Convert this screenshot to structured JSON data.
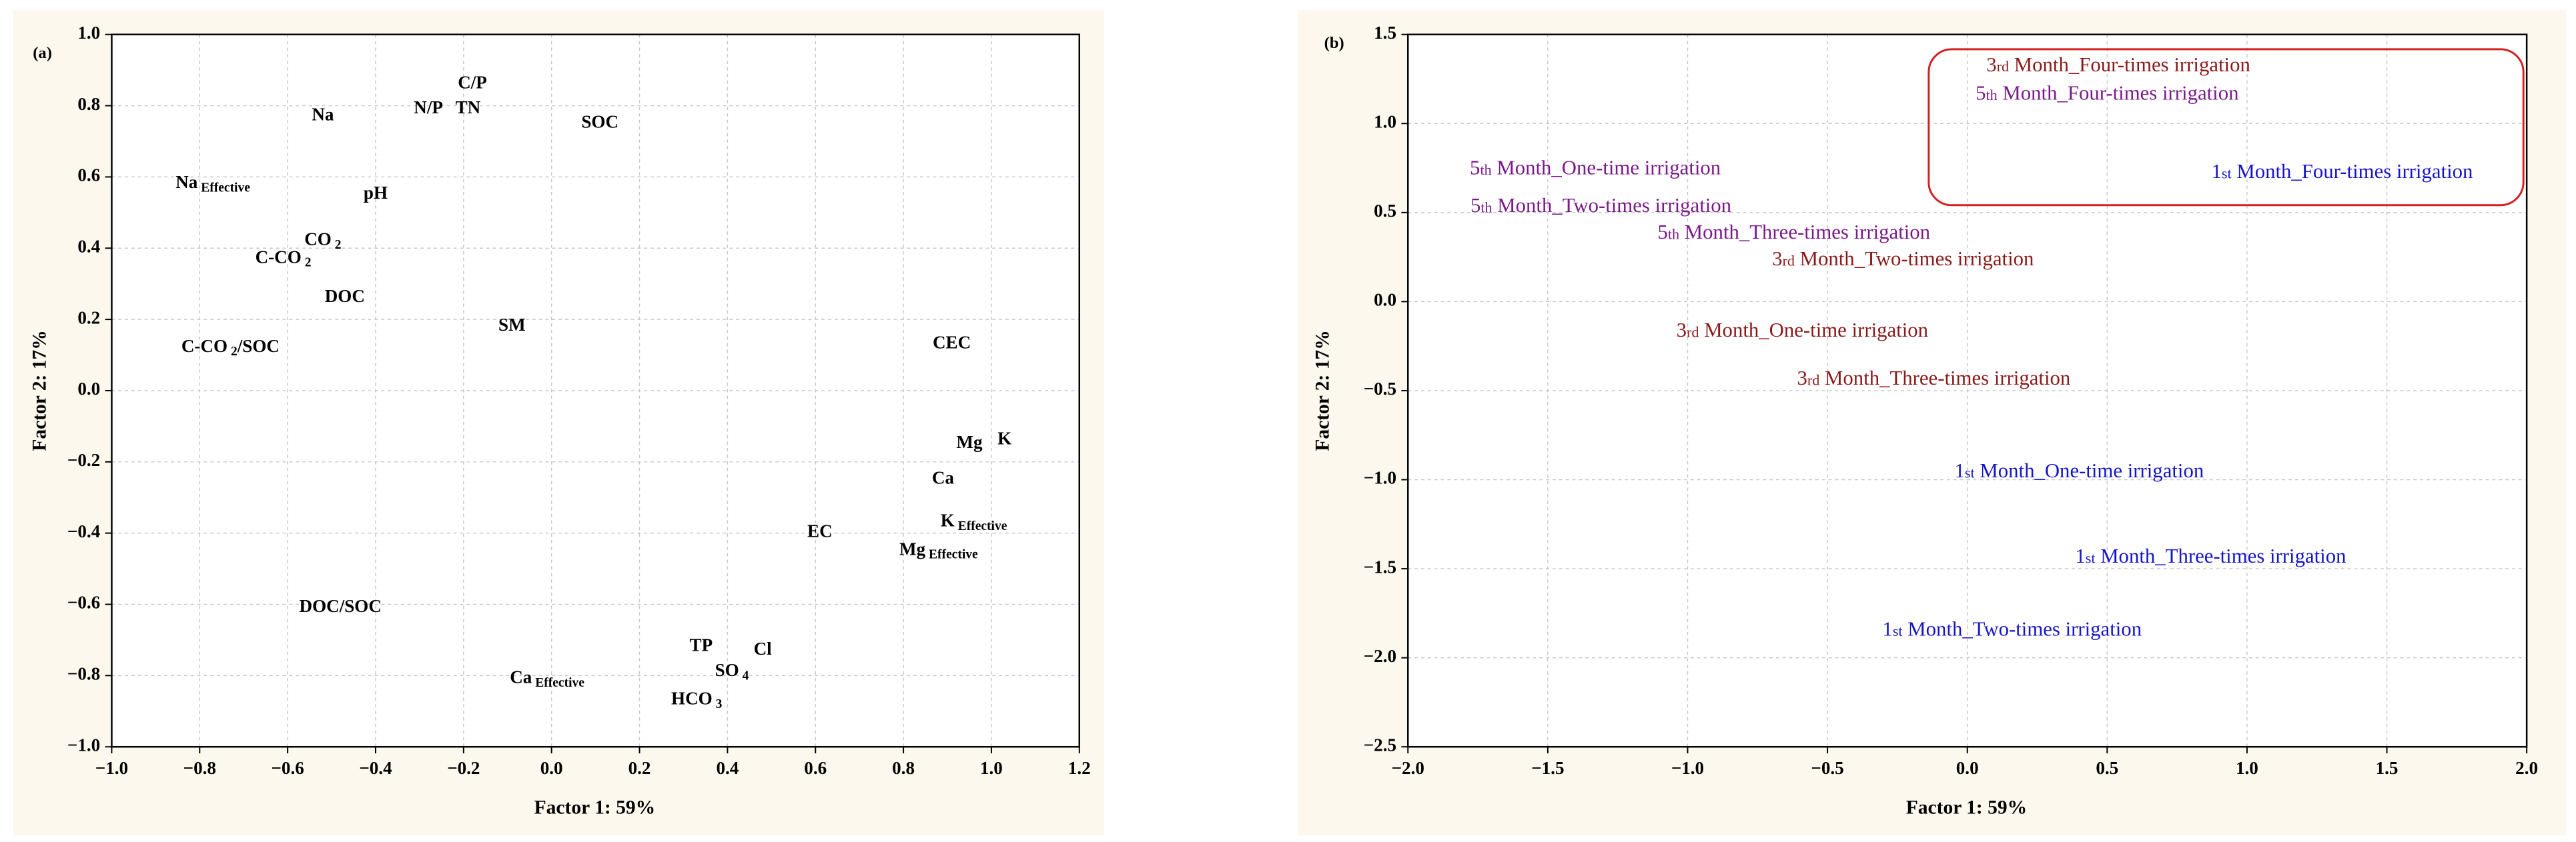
{
  "chart_data": [
    {
      "type": "scatter",
      "panel_label": "(a)",
      "x_label": "Factor 1: 59%",
      "y_label": "Factor 2: 17%",
      "color": "#000000",
      "xlim": [
        -1.0,
        1.2
      ],
      "ylim": [
        -1.0,
        1.0
      ],
      "grid": true,
      "xticks": [
        {
          "value": -1.0,
          "label": "−1.0"
        },
        {
          "value": -0.8,
          "label": "−0.8"
        },
        {
          "value": -0.6,
          "label": "−0.6"
        },
        {
          "value": -0.4,
          "label": "−0.4"
        },
        {
          "value": -0.2,
          "label": "−0.2"
        },
        {
          "value": 0,
          "label": "0.0"
        },
        {
          "value": 0.2,
          "label": "0.2"
        },
        {
          "value": 0.4,
          "label": "0.4"
        },
        {
          "value": 0.6,
          "label": "0.6"
        },
        {
          "value": 0.8,
          "label": "0.8"
        },
        {
          "value": 1.0,
          "label": "1.0"
        },
        {
          "value": 1.2,
          "label": "1.2"
        }
      ],
      "yticks": [
        {
          "value": -1.0,
          "label": "−1.0"
        },
        {
          "value": -0.8,
          "label": "−0.8"
        },
        {
          "value": -0.6,
          "label": "−0.6"
        },
        {
          "value": -0.4,
          "label": "−0.4"
        },
        {
          "value": -0.2,
          "label": "−0.2"
        },
        {
          "value": 0,
          "label": "0.0"
        },
        {
          "value": 0.2,
          "label": "0.2"
        },
        {
          "value": 0.4,
          "label": "0.4"
        },
        {
          "value": 0.6,
          "label": "0.6"
        },
        {
          "value": 0.8,
          "label": "0.8"
        },
        {
          "value": 1.0,
          "label": "1.0"
        }
      ],
      "points": [
        {
          "x": -0.18,
          "y": 0.86,
          "label": [
            {
              "text": "C/P"
            }
          ]
        },
        {
          "x": -0.28,
          "y": 0.79,
          "label": [
            {
              "text": "N/P"
            }
          ]
        },
        {
          "x": -0.19,
          "y": 0.79,
          "label": [
            {
              "text": "TN"
            }
          ]
        },
        {
          "x": -0.52,
          "y": 0.77,
          "label": [
            {
              "text": "Na"
            }
          ]
        },
        {
          "x": 0.11,
          "y": 0.75,
          "label": [
            {
              "text": "SOC"
            }
          ]
        },
        {
          "x": -0.77,
          "y": 0.58,
          "label": [
            {
              "text": "Na"
            },
            {
              "text": "Effective",
              "sub": true
            }
          ]
        },
        {
          "x": -0.4,
          "y": 0.55,
          "label": [
            {
              "text": "pH"
            }
          ]
        },
        {
          "x": -0.52,
          "y": 0.42,
          "label": [
            {
              "text": "CO"
            },
            {
              "text": "2",
              "sub": true
            }
          ]
        },
        {
          "x": -0.61,
          "y": 0.37,
          "label": [
            {
              "text": "C-CO"
            },
            {
              "text": "2",
              "sub": true
            }
          ]
        },
        {
          "x": -0.47,
          "y": 0.26,
          "label": [
            {
              "text": "DOC"
            }
          ]
        },
        {
          "x": -0.09,
          "y": 0.18,
          "label": [
            {
              "text": "SM"
            }
          ]
        },
        {
          "x": -0.73,
          "y": 0.12,
          "label": [
            {
              "text": "C-CO"
            },
            {
              "text": "2",
              "sub": true
            },
            {
              "text": "/SOC"
            }
          ]
        },
        {
          "x": 0.91,
          "y": 0.13,
          "label": [
            {
              "text": "CEC"
            }
          ]
        },
        {
          "x": 0.95,
          "y": -0.15,
          "label": [
            {
              "text": "Mg"
            }
          ]
        },
        {
          "x": 1.03,
          "y": -0.14,
          "label": [
            {
              "text": "K"
            }
          ]
        },
        {
          "x": 0.89,
          "y": -0.25,
          "label": [
            {
              "text": "Ca"
            }
          ]
        },
        {
          "x": 0.96,
          "y": -0.37,
          "label": [
            {
              "text": "K"
            },
            {
              "text": "Effective",
              "sub": true
            }
          ]
        },
        {
          "x": 0.61,
          "y": -0.4,
          "label": [
            {
              "text": "EC"
            }
          ]
        },
        {
          "x": 0.88,
          "y": -0.45,
          "label": [
            {
              "text": "Mg"
            },
            {
              "text": "Effective",
              "sub": true
            }
          ]
        },
        {
          "x": -0.48,
          "y": -0.61,
          "label": [
            {
              "text": "DOC/SOC"
            }
          ]
        },
        {
          "x": 0.34,
          "y": -0.72,
          "label": [
            {
              "text": "TP"
            }
          ]
        },
        {
          "x": 0.48,
          "y": -0.73,
          "label": [
            {
              "text": "Cl"
            }
          ]
        },
        {
          "x": 0.41,
          "y": -0.79,
          "label": [
            {
              "text": "SO"
            },
            {
              "text": "4",
              "sub": true
            }
          ]
        },
        {
          "x": -0.01,
          "y": -0.81,
          "label": [
            {
              "text": "Ca"
            },
            {
              "text": "Effective",
              "sub": true
            }
          ]
        },
        {
          "x": 0.33,
          "y": -0.87,
          "label": [
            {
              "text": "HCO"
            },
            {
              "text": "3",
              "sub": true
            }
          ]
        }
      ]
    },
    {
      "type": "scatter",
      "panel_label": "(b)",
      "x_label": "Factor 1: 59%",
      "y_label": "Factor 2: 17%",
      "xlim": [
        -2.0,
        2.0
      ],
      "ylim": [
        -2.5,
        1.5
      ],
      "grid": true,
      "xticks": [
        {
          "value": -2.0,
          "label": "−2.0"
        },
        {
          "value": -1.5,
          "label": "−1.5"
        },
        {
          "value": -1.0,
          "label": "−1.0"
        },
        {
          "value": -0.5,
          "label": "−0.5"
        },
        {
          "value": 0,
          "label": "0.0"
        },
        {
          "value": 0.5,
          "label": "0.5"
        },
        {
          "value": 1.0,
          "label": "1.0"
        },
        {
          "value": 1.5,
          "label": "1.5"
        },
        {
          "value": 2.0,
          "label": "2.0"
        }
      ],
      "yticks": [
        {
          "value": -2.5,
          "label": "−2.5"
        },
        {
          "value": -2.0,
          "label": "−2.0"
        },
        {
          "value": -1.5,
          "label": "−1.5"
        },
        {
          "value": -1.0,
          "label": "−1.0"
        },
        {
          "value": -0.5,
          "label": "−0.5"
        },
        {
          "value": 0,
          "label": "0.0"
        },
        {
          "value": 0.5,
          "label": "0.5"
        },
        {
          "value": 1.0,
          "label": "1.0"
        },
        {
          "value": 1.5,
          "label": "1.5"
        }
      ],
      "points": [
        {
          "x": 0.54,
          "y": 1.32,
          "color": "#8b1a1a",
          "label": [
            {
              "text": "3"
            },
            {
              "text": "rd",
              "small": true
            },
            {
              "text": " Month_Four-times irrigation"
            }
          ]
        },
        {
          "x": 0.5,
          "y": 1.16,
          "color": "#7a1a8a",
          "label": [
            {
              "text": "5"
            },
            {
              "text": "th",
              "small": true
            },
            {
              "text": " Month_Four-times irrigation"
            }
          ]
        },
        {
          "x": 1.34,
          "y": 0.72,
          "color": "#1515c8",
          "label": [
            {
              "text": "1"
            },
            {
              "text": "st",
              "small": true
            },
            {
              "text": " Month_Four-times irrigation"
            }
          ]
        },
        {
          "x": -1.33,
          "y": 0.74,
          "color": "#7a1a8a",
          "label": [
            {
              "text": "5"
            },
            {
              "text": "th",
              "small": true
            },
            {
              "text": " Month_One-time irrigation"
            }
          ]
        },
        {
          "x": -1.31,
          "y": 0.53,
          "color": "#7a1a8a",
          "label": [
            {
              "text": "5"
            },
            {
              "text": "th",
              "small": true
            },
            {
              "text": " Month_Two-times irrigation"
            }
          ]
        },
        {
          "x": -0.62,
          "y": 0.38,
          "color": "#7a1a8a",
          "label": [
            {
              "text": "5"
            },
            {
              "text": "th",
              "small": true
            },
            {
              "text": " Month_Three-times irrigation"
            }
          ]
        },
        {
          "x": -0.23,
          "y": 0.23,
          "color": "#8b1a1a",
          "label": [
            {
              "text": "3"
            },
            {
              "text": "rd",
              "small": true
            },
            {
              "text": " Month_Two-times irrigation"
            }
          ]
        },
        {
          "x": -0.59,
          "y": -0.17,
          "color": "#8b1a1a",
          "label": [
            {
              "text": "3"
            },
            {
              "text": "rd",
              "small": true
            },
            {
              "text": " Month_One-time irrigation"
            }
          ]
        },
        {
          "x": -0.12,
          "y": -0.44,
          "color": "#8b1a1a",
          "label": [
            {
              "text": "3"
            },
            {
              "text": "rd",
              "small": true
            },
            {
              "text": " Month_Three-times irrigation"
            }
          ]
        },
        {
          "x": 0.4,
          "y": -0.96,
          "color": "#1515c8",
          "label": [
            {
              "text": "1"
            },
            {
              "text": "st",
              "small": true
            },
            {
              "text": " Month_One-time irrigation"
            }
          ]
        },
        {
          "x": 0.87,
          "y": -1.44,
          "color": "#1515c8",
          "label": [
            {
              "text": "1"
            },
            {
              "text": "st",
              "small": true
            },
            {
              "text": " Month_Three-times irrigation"
            }
          ]
        },
        {
          "x": 0.16,
          "y": -1.85,
          "color": "#1515c8",
          "label": [
            {
              "text": "1"
            },
            {
              "text": "st",
              "small": true
            },
            {
              "text": " Month_Two-times irrigation"
            }
          ]
        }
      ]
    }
  ]
}
